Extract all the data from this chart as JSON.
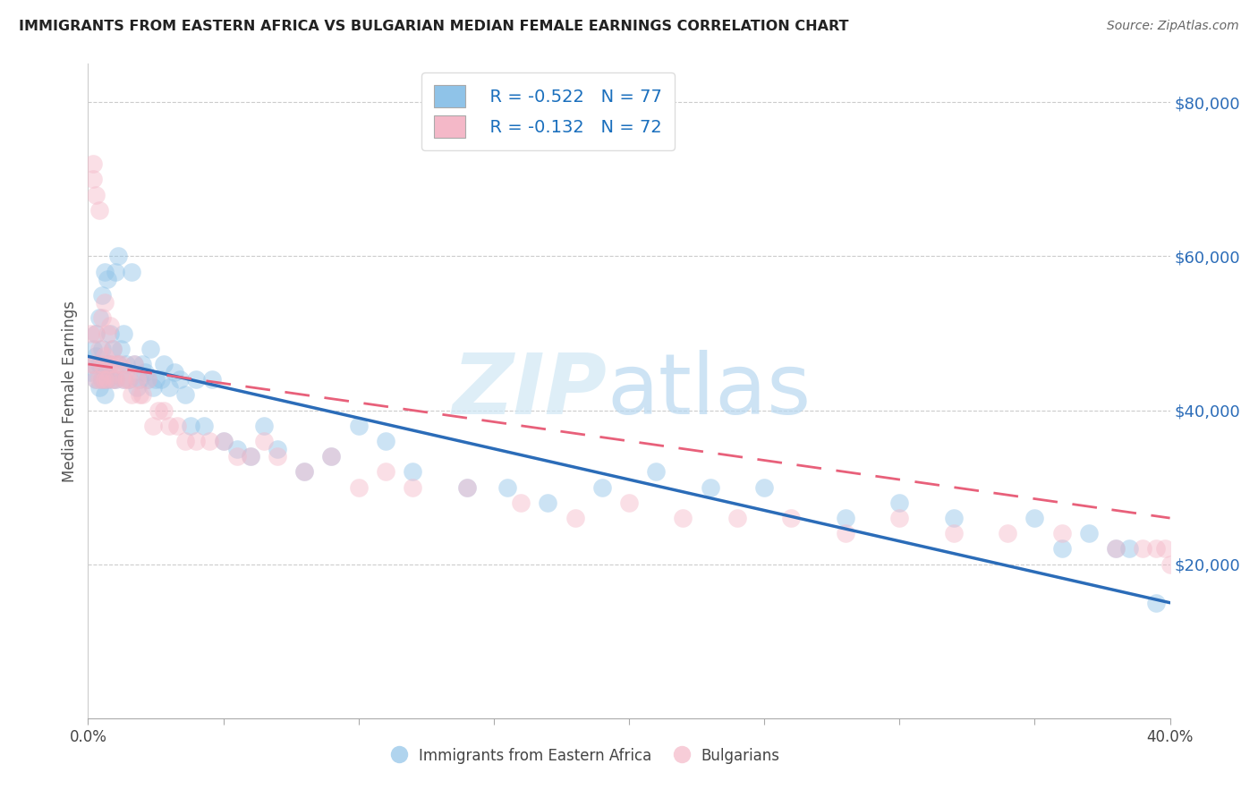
{
  "title": "IMMIGRANTS FROM EASTERN AFRICA VS BULGARIAN MEDIAN FEMALE EARNINGS CORRELATION CHART",
  "source": "Source: ZipAtlas.com",
  "ylabel": "Median Female Earnings",
  "xlim": [
    0.0,
    0.4
  ],
  "ylim": [
    0,
    85000
  ],
  "yticks": [
    20000,
    40000,
    60000,
    80000
  ],
  "ytick_labels": [
    "$20,000",
    "$40,000",
    "$60,000",
    "$80,000"
  ],
  "xticks": [
    0.0,
    0.05,
    0.1,
    0.15,
    0.2,
    0.25,
    0.3,
    0.35,
    0.4
  ],
  "xtick_labels_show": {
    "0.0": "0.0%",
    "0.4": "40.0%"
  },
  "legend_R1": "R = -0.522",
  "legend_N1": "N = 77",
  "legend_R2": "R = -0.132",
  "legend_N2": "N = 72",
  "color_blue": "#8fc3e8",
  "color_pink": "#f4b8c8",
  "color_blue_line": "#2b6cb8",
  "color_pink_line": "#e8607a",
  "blue_scatter_x": [
    0.001,
    0.002,
    0.002,
    0.003,
    0.003,
    0.003,
    0.004,
    0.004,
    0.004,
    0.005,
    0.005,
    0.005,
    0.006,
    0.006,
    0.006,
    0.007,
    0.007,
    0.007,
    0.008,
    0.008,
    0.009,
    0.009,
    0.01,
    0.01,
    0.011,
    0.011,
    0.012,
    0.013,
    0.013,
    0.014,
    0.015,
    0.016,
    0.017,
    0.018,
    0.019,
    0.02,
    0.021,
    0.022,
    0.023,
    0.024,
    0.025,
    0.027,
    0.028,
    0.03,
    0.032,
    0.034,
    0.036,
    0.038,
    0.04,
    0.043,
    0.046,
    0.05,
    0.055,
    0.06,
    0.065,
    0.07,
    0.08,
    0.09,
    0.1,
    0.11,
    0.12,
    0.14,
    0.155,
    0.17,
    0.19,
    0.21,
    0.23,
    0.25,
    0.28,
    0.3,
    0.32,
    0.35,
    0.36,
    0.37,
    0.38,
    0.385,
    0.395
  ],
  "blue_scatter_y": [
    45000,
    46000,
    48000,
    47000,
    50000,
    44000,
    52000,
    46000,
    43000,
    48000,
    55000,
    44000,
    58000,
    45000,
    42000,
    57000,
    46000,
    44000,
    50000,
    46000,
    44000,
    48000,
    58000,
    44000,
    60000,
    46000,
    48000,
    44000,
    50000,
    46000,
    44000,
    58000,
    46000,
    43000,
    44000,
    46000,
    45000,
    44000,
    48000,
    43000,
    44000,
    44000,
    46000,
    43000,
    45000,
    44000,
    42000,
    38000,
    44000,
    38000,
    44000,
    36000,
    35000,
    34000,
    38000,
    35000,
    32000,
    34000,
    38000,
    36000,
    32000,
    30000,
    30000,
    28000,
    30000,
    32000,
    30000,
    30000,
    26000,
    28000,
    26000,
    26000,
    22000,
    24000,
    22000,
    22000,
    15000
  ],
  "pink_scatter_x": [
    0.001,
    0.001,
    0.002,
    0.002,
    0.002,
    0.003,
    0.003,
    0.003,
    0.004,
    0.004,
    0.004,
    0.005,
    0.005,
    0.005,
    0.006,
    0.006,
    0.006,
    0.007,
    0.007,
    0.007,
    0.008,
    0.008,
    0.009,
    0.009,
    0.01,
    0.01,
    0.011,
    0.012,
    0.013,
    0.014,
    0.015,
    0.016,
    0.017,
    0.018,
    0.019,
    0.02,
    0.022,
    0.024,
    0.026,
    0.028,
    0.03,
    0.033,
    0.036,
    0.04,
    0.045,
    0.05,
    0.055,
    0.06,
    0.065,
    0.07,
    0.08,
    0.09,
    0.1,
    0.11,
    0.12,
    0.14,
    0.16,
    0.18,
    0.2,
    0.22,
    0.24,
    0.26,
    0.28,
    0.3,
    0.32,
    0.34,
    0.36,
    0.38,
    0.39,
    0.395,
    0.398,
    0.4
  ],
  "pink_scatter_y": [
    50000,
    46000,
    72000,
    70000,
    46000,
    68000,
    50000,
    44000,
    66000,
    48000,
    44000,
    52000,
    46000,
    44000,
    54000,
    47000,
    44000,
    50000,
    46000,
    44000,
    51000,
    46000,
    48000,
    44000,
    46000,
    44000,
    46000,
    46000,
    44000,
    44000,
    44000,
    42000,
    46000,
    44000,
    42000,
    42000,
    44000,
    38000,
    40000,
    40000,
    38000,
    38000,
    36000,
    36000,
    36000,
    36000,
    34000,
    34000,
    36000,
    34000,
    32000,
    34000,
    30000,
    32000,
    30000,
    30000,
    28000,
    26000,
    28000,
    26000,
    26000,
    26000,
    24000,
    26000,
    24000,
    24000,
    24000,
    22000,
    22000,
    22000,
    22000,
    20000
  ]
}
